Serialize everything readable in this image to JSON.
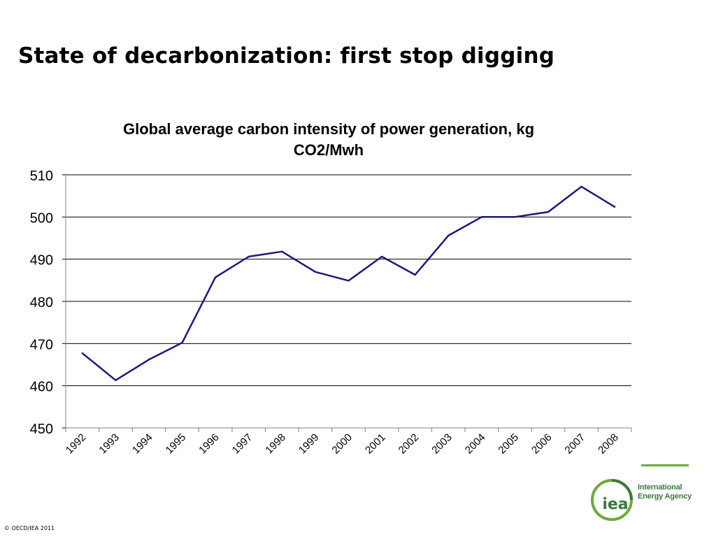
{
  "slide": {
    "title": "State of decarbonization: first stop digging",
    "footer": "© OECD/IEA 2011"
  },
  "logo": {
    "mark": "iea",
    "line1": "International",
    "line2": "Energy Agency",
    "colors": {
      "green": "#6aab3a",
      "text": "#3b7a3b"
    }
  },
  "chart_data": {
    "type": "line",
    "title": "Global average carbon intensity of power generation, kg CO2/Mwh",
    "title_lines": [
      "Global average carbon intensity of power generation, kg",
      "CO2/Mwh"
    ],
    "categories": [
      "1992",
      "1993",
      "1994",
      "1995",
      "1996",
      "1997",
      "1998",
      "1999",
      "2000",
      "2001",
      "2002",
      "2003",
      "2004",
      "2005",
      "2006",
      "2007",
      "2008"
    ],
    "series": [
      {
        "values": [
          467.7,
          461.3,
          466.2,
          470.2,
          485.7,
          490.6,
          491.8,
          487.0,
          484.9,
          490.6,
          486.3,
          495.6,
          500.0,
          500.0,
          501.2,
          507.2,
          502.4
        ],
        "color": "#1a1a7e"
      }
    ],
    "ylim": [
      450,
      510
    ],
    "yticks": [
      450,
      460,
      470,
      480,
      490,
      500,
      510
    ],
    "grid": true,
    "legend": "none"
  }
}
